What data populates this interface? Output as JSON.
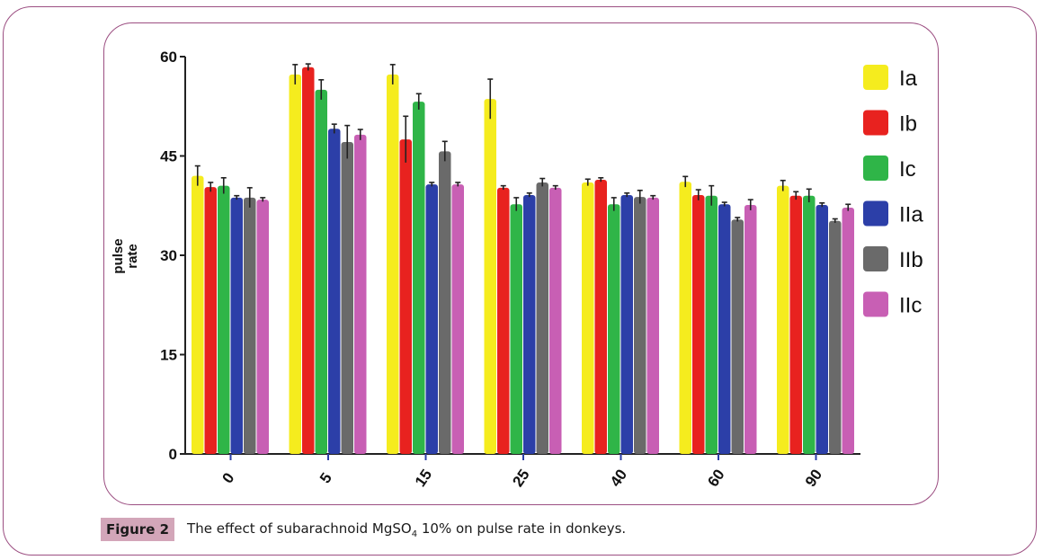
{
  "caption": {
    "label": "Figure 2",
    "text_before": "The effect of subarachnoid MgSO",
    "subscript": "4",
    "text_after": " 10% on pulse rate in donkeys."
  },
  "chart_data": {
    "type": "bar",
    "title": "",
    "xlabel": "",
    "ylabel": "pulse rate",
    "ylabel_lines": [
      "pulse",
      "rate"
    ],
    "ylim": [
      0,
      60
    ],
    "yticks": [
      0,
      15,
      30,
      45,
      60
    ],
    "grid": false,
    "legend_position": "right",
    "categories": [
      "0",
      "5",
      "15",
      "25",
      "40",
      "60",
      "90"
    ],
    "series": [
      {
        "name": "Ia",
        "color": "#f5ec1e",
        "values": [
          42.0,
          57.3,
          57.3,
          53.6,
          41.0,
          41.1,
          40.5
        ],
        "errors": [
          1.5,
          1.5,
          1.5,
          3.0,
          0.5,
          0.8,
          0.8
        ]
      },
      {
        "name": "Ib",
        "color": "#e8221f",
        "values": [
          40.3,
          58.4,
          47.5,
          40.2,
          41.4,
          39.1,
          39.0
        ],
        "errors": [
          0.7,
          0.5,
          3.5,
          0.3,
          0.3,
          0.8,
          0.6
        ]
      },
      {
        "name": "Ic",
        "color": "#2fb548",
        "values": [
          40.5,
          55.0,
          53.2,
          37.7,
          37.7,
          39.0,
          39.0
        ],
        "errors": [
          1.2,
          1.5,
          1.2,
          1.0,
          1.0,
          1.5,
          1.0
        ]
      },
      {
        "name": "IIa",
        "color": "#2c3fa8",
        "values": [
          38.7,
          49.1,
          40.7,
          39.1,
          39.1,
          37.7,
          37.6
        ],
        "errors": [
          0.3,
          0.7,
          0.3,
          0.3,
          0.3,
          0.3,
          0.3
        ]
      },
      {
        "name": "IIb",
        "color": "#6a6a6a",
        "values": [
          38.7,
          47.1,
          45.7,
          41.0,
          38.8,
          35.4,
          35.2
        ],
        "errors": [
          1.5,
          2.5,
          1.5,
          0.6,
          1.0,
          0.3,
          0.3
        ]
      },
      {
        "name": "IIc",
        "color": "#c85fb4",
        "values": [
          38.4,
          48.2,
          40.7,
          40.2,
          38.7,
          37.6,
          37.2
        ],
        "errors": [
          0.3,
          0.8,
          0.3,
          0.3,
          0.3,
          0.8,
          0.5
        ]
      }
    ]
  }
}
